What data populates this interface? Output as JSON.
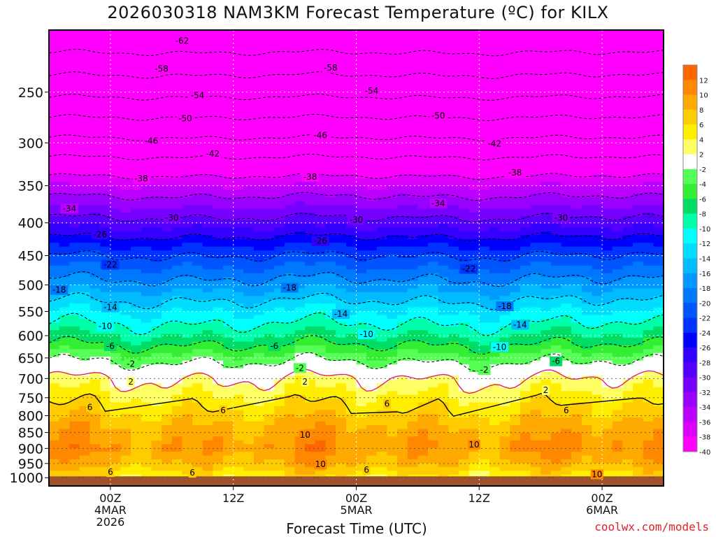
{
  "title": "2026030318 NAM3KM Forecast Temperature (ºC) for KILX",
  "credit": "coolwx.com/models",
  "chart_data": {
    "type": "heatmap",
    "title": "2026030318 NAM3KM Forecast Temperature (ºC) for KILX",
    "xlabel": "Forecast Time (UTC)",
    "ylabel": "",
    "x_range_hours": [
      0,
      60
    ],
    "y_range_hPa": [
      200,
      1030
    ],
    "y_scale": "log",
    "y_ticks": [
      "250",
      "300",
      "350",
      "400",
      "450",
      "500",
      "550",
      "600",
      "650",
      "700",
      "750",
      "800",
      "850",
      "900",
      "950",
      "1000"
    ],
    "x_ticks": [
      {
        "hour": 6,
        "lines": [
          "00Z",
          "4MAR",
          "2026"
        ]
      },
      {
        "hour": 18,
        "lines": [
          "12Z"
        ]
      },
      {
        "hour": 30,
        "lines": [
          "00Z",
          "5MAR"
        ]
      },
      {
        "hour": 42,
        "lines": [
          "12Z"
        ]
      },
      {
        "hour": 54,
        "lines": [
          "00Z",
          "6MAR"
        ]
      }
    ],
    "colorbar_labels": [
      "12",
      "10",
      "8",
      "6",
      "4",
      "2",
      "-2",
      "-4",
      "-6",
      "-8",
      "-10",
      "-12",
      "-14",
      "-16",
      "-18",
      "-20",
      "-22",
      "-24",
      "-26",
      "-28",
      "-30",
      "-32",
      "-34",
      "-36",
      "-38",
      "-40"
    ],
    "colorbar_colors": [
      "#ff6600",
      "#ff8800",
      "#ffaa00",
      "#ffcc00",
      "#ffee00",
      "#ffff66",
      "#ffffff",
      "#55ff55",
      "#33ee33",
      "#00dd66",
      "#00ffaa",
      "#00ffff",
      "#00ddff",
      "#00bbff",
      "#0099ff",
      "#0077ff",
      "#0055ff",
      "#0033ff",
      "#0000ff",
      "#3300ff",
      "#5500ff",
      "#7700ff",
      "#9900ff",
      "#bb00ff",
      "#dd00ff",
      "#ff00ff"
    ],
    "temperature_profile": [
      {
        "p": 200,
        "t": -66
      },
      {
        "p": 250,
        "t": -55
      },
      {
        "p": 300,
        "t": -45
      },
      {
        "p": 350,
        "t": -36
      },
      {
        "p": 400,
        "t": -29
      },
      {
        "p": 450,
        "t": -22
      },
      {
        "p": 500,
        "t": -17
      },
      {
        "p": 550,
        "t": -12
      },
      {
        "p": 600,
        "t": -8
      },
      {
        "p": 650,
        "t": -3
      },
      {
        "p": 700,
        "t": 2
      },
      {
        "p": 750,
        "t": 4.5
      },
      {
        "p": 800,
        "t": 7
      },
      {
        "p": 850,
        "t": 9
      },
      {
        "p": 900,
        "t": 10
      },
      {
        "p": 950,
        "t": 8
      },
      {
        "p": 1000,
        "t": 5
      }
    ],
    "ground_level_hPa": 995,
    "ground_color": "#a0522d",
    "contour_levels": [
      -62,
      -58,
      -54,
      -50,
      -46,
      -42,
      -38,
      -34,
      -30,
      -26,
      -22,
      -18,
      -14,
      -10,
      -6,
      -2,
      2,
      6,
      10
    ],
    "contour_labels": [
      {
        "v": "-62",
        "hour": 13.0,
        "p": 208
      },
      {
        "v": "-58",
        "hour": 11.0,
        "p": 230
      },
      {
        "v": "-58",
        "hour": 27.5,
        "p": 229
      },
      {
        "v": "-54",
        "hour": 14.5,
        "p": 253
      },
      {
        "v": "-54",
        "hour": 31.5,
        "p": 249
      },
      {
        "v": "-50",
        "hour": 13.3,
        "p": 275
      },
      {
        "v": "-50",
        "hour": 38.0,
        "p": 272
      },
      {
        "v": "-46",
        "hour": 10.0,
        "p": 298
      },
      {
        "v": "-46",
        "hour": 26.5,
        "p": 292
      },
      {
        "v": "-42",
        "hour": 16.0,
        "p": 312
      },
      {
        "v": "-42",
        "hour": 43.5,
        "p": 301
      },
      {
        "v": "-38",
        "hour": 9.0,
        "p": 341
      },
      {
        "v": "-38",
        "hour": 25.5,
        "p": 339
      },
      {
        "v": "-38",
        "hour": 45.5,
        "p": 334
      },
      {
        "v": "-34",
        "hour": 2.0,
        "p": 380
      },
      {
        "v": "-34",
        "hour": 38.0,
        "p": 373
      },
      {
        "v": "-30",
        "hour": 12.0,
        "p": 393
      },
      {
        "v": "-30",
        "hour": 30.0,
        "p": 396
      },
      {
        "v": "-30",
        "hour": 50.0,
        "p": 393
      },
      {
        "v": "-26",
        "hour": 5.0,
        "p": 417
      },
      {
        "v": "-26",
        "hour": 26.5,
        "p": 427
      },
      {
        "v": "-22",
        "hour": 6.0,
        "p": 465
      },
      {
        "v": "-22",
        "hour": 41.0,
        "p": 472
      },
      {
        "v": "-18",
        "hour": 1.0,
        "p": 509
      },
      {
        "v": "-18",
        "hour": 23.5,
        "p": 505
      },
      {
        "v": "-18",
        "hour": 44.5,
        "p": 540
      },
      {
        "v": "-14",
        "hour": 6.0,
        "p": 542
      },
      {
        "v": "-14",
        "hour": 28.5,
        "p": 555
      },
      {
        "v": "-14",
        "hour": 46.0,
        "p": 577
      },
      {
        "v": "-10",
        "hour": 5.5,
        "p": 580
      },
      {
        "v": "-10",
        "hour": 31.0,
        "p": 597
      },
      {
        "v": "-10",
        "hour": 44.0,
        "p": 625
      },
      {
        "v": "-6",
        "hour": 6.0,
        "p": 623
      },
      {
        "v": "-6",
        "hour": 22.0,
        "p": 623
      },
      {
        "v": "-6",
        "hour": 49.5,
        "p": 658
      },
      {
        "v": "-2",
        "hour": 8.0,
        "p": 664
      },
      {
        "v": "-2",
        "hour": 24.5,
        "p": 674
      },
      {
        "v": "-2",
        "hour": 42.5,
        "p": 679
      },
      {
        "v": "2",
        "hour": 8.0,
        "p": 708
      },
      {
        "v": "2",
        "hour": 25.0,
        "p": 708
      },
      {
        "v": "2",
        "hour": 48.5,
        "p": 730
      },
      {
        "v": "6",
        "hour": 4.0,
        "p": 776
      },
      {
        "v": "6",
        "hour": 17.0,
        "p": 785
      },
      {
        "v": "6",
        "hour": 33.0,
        "p": 767
      },
      {
        "v": "6",
        "hour": 50.5,
        "p": 785
      },
      {
        "v": "6",
        "hour": 6.0,
        "p": 980
      },
      {
        "v": "6",
        "hour": 14.0,
        "p": 982
      },
      {
        "v": "6",
        "hour": 31.0,
        "p": 972
      },
      {
        "v": "10",
        "hour": 25.0,
        "p": 857
      },
      {
        "v": "10",
        "hour": 41.5,
        "p": 888
      },
      {
        "v": "10",
        "hour": 26.5,
        "p": 953
      },
      {
        "v": "10",
        "hour": 53.5,
        "p": 988
      }
    ]
  }
}
